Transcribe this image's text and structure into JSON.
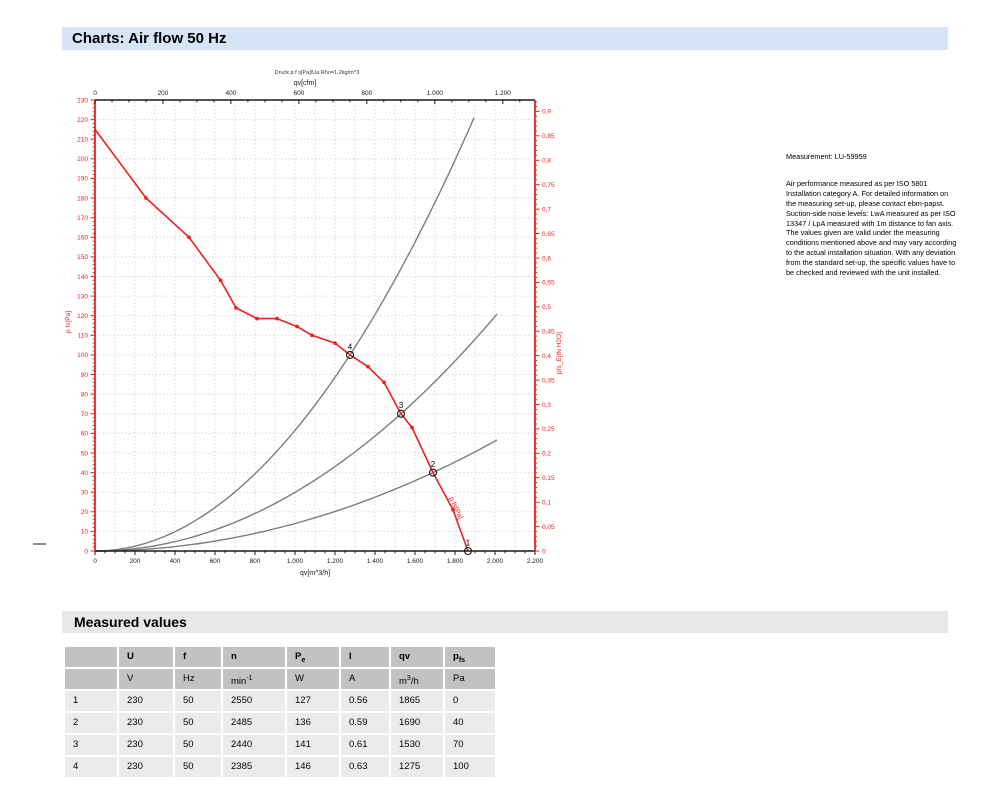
{
  "page": {
    "title": "Charts: Air flow 50 Hz"
  },
  "measurement": {
    "title": "Measurement: LU-59959",
    "body": "Air performance measured as per ISO 5801 Installation category A. For detailed information on the measuring set-up, please contact ebm-papst. Suction-side noise levels: LwA measured as per ISO 13347 / LpA measured with 1m distance to fan axis. The values given are valid under the measuring conditions mentioned above and may vary according to the actual installation situation. With any deviation from the standard set-up, the specific values have to be checked and reviewed with the unit installed."
  },
  "chart_data": {
    "type": "line",
    "header_note": "Druck p f s[Pa]/Ua Rho=1.2kg/m^3",
    "top_axis": {
      "label": "qv[cfm]",
      "min": 0,
      "max": 1295,
      "major_step": 200,
      "minor_step": 50,
      "scale_to_bottom": 1.699,
      "major_labels": [
        "0",
        "200",
        "400",
        "600",
        "800",
        "1.000",
        "1.200"
      ]
    },
    "bottom_axis": {
      "label": "qv[m^3/h]",
      "min": 0,
      "max": 2200,
      "major_step": 200,
      "minor_step": 50,
      "major_labels": [
        "0",
        "200",
        "400",
        "600",
        "800",
        "1.000",
        "1.200",
        "1.400",
        "1.600",
        "1.800",
        "2.000",
        "2.200"
      ]
    },
    "left_axis": {
      "label": "p fs[Pa]",
      "min": 0,
      "max": 230,
      "major_step": 10,
      "minor_step": 2,
      "major_labels": [
        "0",
        "10",
        "20",
        "30",
        "40",
        "50",
        "60",
        "70",
        "80",
        "90",
        "100",
        "110",
        "120",
        "130",
        "140",
        "150",
        "160",
        "170",
        "180",
        "190",
        "200",
        "210",
        "220",
        "230"
      ]
    },
    "right_axis": {
      "label": "pfs_E[IN H2O]",
      "min": 0,
      "max": 0.9,
      "major_step": 0.05,
      "minor_step": 0.01,
      "pa_per_unit": 249.08,
      "major_labels": [
        "0",
        "0,05",
        "0,1",
        "0,15",
        "0,2",
        "0,25",
        "0,3",
        "0,35",
        "0,4",
        "0,45",
        "0,5",
        "0,55",
        "0,6",
        "0,65",
        "0,7",
        "0,75",
        "0,8",
        "0,85",
        "0,9"
      ]
    },
    "fan_curve": {
      "color": "#e8241f",
      "end_label": "p fs[Pa]",
      "points": [
        [
          0,
          215
        ],
        [
          255,
          180
        ],
        [
          470,
          160
        ],
        [
          628,
          138
        ],
        [
          705,
          124
        ],
        [
          810,
          118.5
        ],
        [
          910,
          118.5
        ],
        [
          1010,
          114.5
        ],
        [
          1085,
          110
        ],
        [
          1200,
          106
        ],
        [
          1275,
          100
        ],
        [
          1365,
          94
        ],
        [
          1445,
          86
        ],
        [
          1530,
          70
        ],
        [
          1585,
          63
        ],
        [
          1690,
          40
        ],
        [
          1790,
          21
        ],
        [
          1865,
          0
        ]
      ],
      "markers": [
        [
          255,
          180
        ],
        [
          470,
          160
        ],
        [
          628,
          138
        ],
        [
          705,
          124
        ],
        [
          810,
          118.5
        ],
        [
          910,
          118.5
        ],
        [
          1010,
          114.5
        ],
        [
          1085,
          110
        ],
        [
          1200,
          106
        ],
        [
          1365,
          94
        ],
        [
          1445,
          86
        ],
        [
          1585,
          63
        ],
        [
          1790,
          21
        ]
      ]
    },
    "system_curves": [
      {
        "through_qv": 1275,
        "through_pfs": 100,
        "qv_end": 1895
      },
      {
        "through_qv": 1530,
        "through_pfs": 70,
        "qv_end": 2010
      },
      {
        "through_qv": 1690,
        "through_pfs": 40,
        "qv_end": 2010
      }
    ],
    "operating_points": [
      {
        "n": "1",
        "qv": 1865,
        "pfs": 0
      },
      {
        "n": "2",
        "qv": 1690,
        "pfs": 40
      },
      {
        "n": "3",
        "qv": 1530,
        "pfs": 70
      },
      {
        "n": "4",
        "qv": 1275,
        "pfs": 100
      }
    ],
    "colors": {
      "curve_red": "#e8241f",
      "system_gray": "#7d7d7d",
      "grid": "#c9c9c9",
      "axis_black": "#1a1a1a"
    }
  },
  "measured_values": {
    "title": "Measured values",
    "columns": [
      {
        "label": "",
        "unit": ""
      },
      {
        "label": "U",
        "unit": "V"
      },
      {
        "label": "f",
        "unit": "Hz"
      },
      {
        "label": "n",
        "unit": "min",
        "unit_sup": "-1"
      },
      {
        "label": "P",
        "label_sub": "e",
        "unit": "W"
      },
      {
        "label": "I",
        "unit": "A"
      },
      {
        "label": "qv",
        "unit": "m",
        "unit_sup": "3",
        "unit_suffix": "/h"
      },
      {
        "label": "p",
        "label_sub": "fs",
        "unit": "Pa"
      }
    ],
    "rows": [
      [
        "1",
        "230",
        "50",
        "2550",
        "127",
        "0.56",
        "1865",
        "0"
      ],
      [
        "2",
        "230",
        "50",
        "2485",
        "136",
        "0.59",
        "1690",
        "40"
      ],
      [
        "3",
        "230",
        "50",
        "2440",
        "141",
        "0.61",
        "1530",
        "70"
      ],
      [
        "4",
        "230",
        "50",
        "2385",
        "146",
        "0.63",
        "1275",
        "100"
      ]
    ]
  }
}
